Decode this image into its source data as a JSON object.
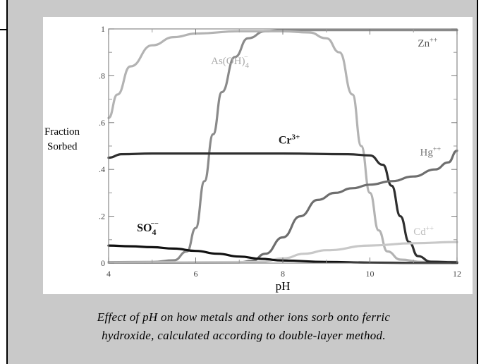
{
  "caption": {
    "line1": "Effect of pH on how metals and other ions sorb onto ferric",
    "line2": "hydroxide, calculated according to double-layer method."
  },
  "chart_data": {
    "type": "line",
    "xlabel": "pH",
    "ylabel_line1": "Fraction",
    "ylabel_line2": "Sorbed",
    "xlim": [
      4,
      12
    ],
    "ylim": [
      0,
      1
    ],
    "x_ticks": [
      "4",
      "6",
      "8",
      "10",
      "12"
    ],
    "y_ticks": [
      "0",
      ".2",
      ".4",
      ".6",
      ".8",
      "1"
    ],
    "series": [
      {
        "name": "Zn++",
        "color": "#8a8a8a",
        "label_x": 11.1,
        "label_y": 0.925,
        "points": [
          [
            4,
            0.004
          ],
          [
            5,
            0.005
          ],
          [
            5.5,
            0.012
          ],
          [
            5.8,
            0.05
          ],
          [
            6.0,
            0.15
          ],
          [
            6.2,
            0.35
          ],
          [
            6.4,
            0.55
          ],
          [
            6.6,
            0.73
          ],
          [
            6.9,
            0.88
          ],
          [
            7.2,
            0.96
          ],
          [
            7.6,
            0.99
          ],
          [
            8,
            0.995
          ],
          [
            12,
            0.995
          ]
        ]
      },
      {
        "name": "As(OH)4",
        "color": "#b3b3b3",
        "label_x": 6.35,
        "label_y": 0.85,
        "points": [
          [
            4,
            0.62
          ],
          [
            4.2,
            0.72
          ],
          [
            4.5,
            0.84
          ],
          [
            5,
            0.93
          ],
          [
            5.5,
            0.965
          ],
          [
            6,
            0.98
          ],
          [
            7,
            0.99
          ],
          [
            8,
            0.99
          ],
          [
            8.6,
            0.985
          ],
          [
            9.0,
            0.96
          ],
          [
            9.3,
            0.9
          ],
          [
            9.6,
            0.72
          ],
          [
            9.8,
            0.5
          ],
          [
            10.0,
            0.3
          ],
          [
            10.2,
            0.14
          ],
          [
            10.4,
            0.05
          ],
          [
            10.7,
            0.015
          ],
          [
            11.2,
            0.005
          ],
          [
            12,
            0.005
          ]
        ]
      },
      {
        "name": "Cr3+",
        "color": "#2e2e2e",
        "label_x": 7.9,
        "label_y": 0.51,
        "points": [
          [
            4,
            0.45
          ],
          [
            4.3,
            0.465
          ],
          [
            5,
            0.468
          ],
          [
            8,
            0.468
          ],
          [
            9.5,
            0.465
          ],
          [
            10.0,
            0.46
          ],
          [
            10.3,
            0.42
          ],
          [
            10.5,
            0.33
          ],
          [
            10.7,
            0.2
          ],
          [
            10.9,
            0.09
          ],
          [
            11.1,
            0.03
          ],
          [
            11.4,
            0.006
          ],
          [
            12,
            0.003
          ]
        ]
      },
      {
        "name": "Hg++",
        "color": "#6e6e6e",
        "label_x": 11.15,
        "label_y": 0.46,
        "points": [
          [
            4,
            0.002
          ],
          [
            7,
            0.003
          ],
          [
            7.3,
            0.01
          ],
          [
            7.6,
            0.04
          ],
          [
            8,
            0.11
          ],
          [
            8.4,
            0.2
          ],
          [
            8.8,
            0.27
          ],
          [
            9.2,
            0.3
          ],
          [
            9.6,
            0.32
          ],
          [
            10,
            0.335
          ],
          [
            10.5,
            0.35
          ],
          [
            11,
            0.37
          ],
          [
            11.5,
            0.4
          ],
          [
            11.8,
            0.43
          ],
          [
            12,
            0.48
          ]
        ]
      },
      {
        "name": "Cd++",
        "color": "#c8c8c8",
        "label_x": 11.0,
        "label_y": 0.12,
        "points": [
          [
            4,
            0.002
          ],
          [
            7.5,
            0.005
          ],
          [
            8,
            0.02
          ],
          [
            8.5,
            0.04
          ],
          [
            9,
            0.055
          ],
          [
            10,
            0.075
          ],
          [
            11,
            0.085
          ],
          [
            12,
            0.09
          ]
        ]
      },
      {
        "name": "SO4",
        "color": "#111111",
        "label_x": 4.65,
        "label_y": 0.135,
        "points": [
          [
            4,
            0.075
          ],
          [
            4.5,
            0.072
          ],
          [
            5,
            0.068
          ],
          [
            5.5,
            0.062
          ],
          [
            6,
            0.052
          ],
          [
            6.5,
            0.04
          ],
          [
            7,
            0.028
          ],
          [
            7.5,
            0.018
          ],
          [
            8,
            0.011
          ],
          [
            9,
            0.005
          ],
          [
            10,
            0.002
          ],
          [
            11,
            0.001
          ],
          [
            12,
            0.001
          ]
        ]
      }
    ]
  }
}
